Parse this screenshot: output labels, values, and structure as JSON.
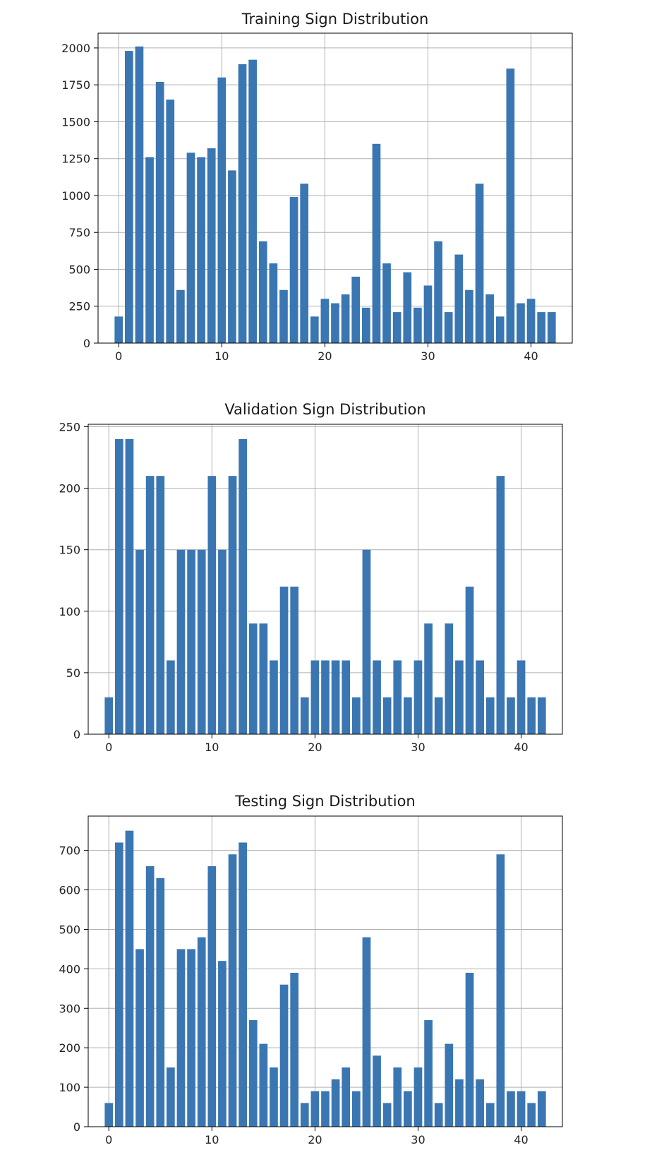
{
  "colors": {
    "bar": "#3a76b2",
    "grid": "#b0b0b0",
    "axis": "#000000",
    "text": "#222222"
  },
  "chart_data": [
    {
      "type": "bar",
      "title": "Training Sign Distribution",
      "xlabel": "",
      "ylabel": "",
      "xlim": [
        -2,
        44
      ],
      "ylim": [
        0,
        2100
      ],
      "grid": true,
      "legend": "none",
      "x_ticks": [
        0,
        10,
        20,
        30,
        40
      ],
      "y_ticks": [
        0,
        250,
        500,
        750,
        1000,
        1250,
        1500,
        1750,
        2000
      ],
      "categories": [
        0,
        1,
        2,
        3,
        4,
        5,
        6,
        7,
        8,
        9,
        10,
        11,
        12,
        13,
        14,
        15,
        16,
        17,
        18,
        19,
        20,
        21,
        22,
        23,
        24,
        25,
        26,
        27,
        28,
        29,
        30,
        31,
        32,
        33,
        34,
        35,
        36,
        37,
        38,
        39,
        40,
        41,
        42
      ],
      "values": [
        180,
        1980,
        2010,
        1260,
        1770,
        1650,
        360,
        1290,
        1260,
        1320,
        1800,
        1170,
        1890,
        1920,
        690,
        540,
        360,
        990,
        1080,
        180,
        300,
        270,
        330,
        450,
        240,
        1350,
        540,
        210,
        480,
        240,
        390,
        690,
        210,
        600,
        360,
        1080,
        330,
        180,
        1860,
        270,
        300,
        210,
        210
      ]
    },
    {
      "type": "bar",
      "title": "Validation Sign Distribution",
      "xlabel": "",
      "ylabel": "",
      "xlim": [
        -2,
        44
      ],
      "ylim": [
        0,
        252
      ],
      "grid": true,
      "legend": "none",
      "x_ticks": [
        0,
        10,
        20,
        30,
        40
      ],
      "y_ticks": [
        0,
        50,
        100,
        150,
        200,
        250
      ],
      "categories": [
        0,
        1,
        2,
        3,
        4,
        5,
        6,
        7,
        8,
        9,
        10,
        11,
        12,
        13,
        14,
        15,
        16,
        17,
        18,
        19,
        20,
        21,
        22,
        23,
        24,
        25,
        26,
        27,
        28,
        29,
        30,
        31,
        32,
        33,
        34,
        35,
        36,
        37,
        38,
        39,
        40,
        41,
        42
      ],
      "values": [
        30,
        240,
        240,
        150,
        210,
        210,
        60,
        150,
        150,
        150,
        210,
        150,
        210,
        240,
        90,
        90,
        60,
        120,
        120,
        30,
        60,
        60,
        60,
        60,
        30,
        150,
        60,
        30,
        60,
        30,
        60,
        90,
        30,
        90,
        60,
        120,
        60,
        30,
        210,
        30,
        60,
        30,
        30
      ]
    },
    {
      "type": "bar",
      "title": "Testing Sign Distribution",
      "xlabel": "",
      "ylabel": "",
      "xlim": [
        -2,
        44
      ],
      "ylim": [
        0,
        787
      ],
      "grid": true,
      "legend": "none",
      "x_ticks": [
        0,
        10,
        20,
        30,
        40
      ],
      "y_ticks": [
        0,
        100,
        200,
        300,
        400,
        500,
        600,
        700
      ],
      "categories": [
        0,
        1,
        2,
        3,
        4,
        5,
        6,
        7,
        8,
        9,
        10,
        11,
        12,
        13,
        14,
        15,
        16,
        17,
        18,
        19,
        20,
        21,
        22,
        23,
        24,
        25,
        26,
        27,
        28,
        29,
        30,
        31,
        32,
        33,
        34,
        35,
        36,
        37,
        38,
        39,
        40,
        41,
        42
      ],
      "values": [
        60,
        720,
        750,
        450,
        660,
        630,
        150,
        450,
        450,
        480,
        660,
        420,
        690,
        720,
        270,
        210,
        150,
        360,
        390,
        60,
        90,
        90,
        120,
        150,
        90,
        480,
        180,
        60,
        150,
        90,
        150,
        270,
        60,
        210,
        120,
        390,
        120,
        60,
        690,
        90,
        90,
        60,
        90
      ]
    }
  ]
}
